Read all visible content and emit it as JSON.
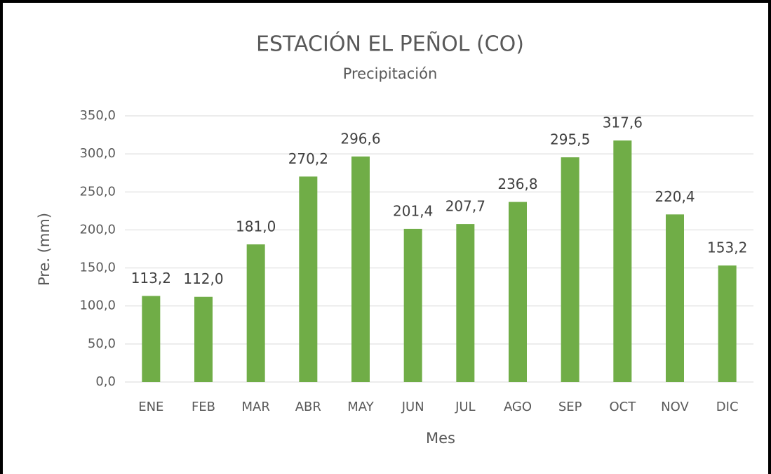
{
  "chart_data": {
    "type": "bar",
    "title": "ESTACIÓN EL PEÑOL (CO)",
    "subtitle": "Precipitación",
    "x_label": "Mes",
    "y_label": "Pre. (mm)",
    "categories": [
      "ENE",
      "FEB",
      "MAR",
      "ABR",
      "MAY",
      "JUN",
      "JUL",
      "AGO",
      "SEP",
      "OCT",
      "NOV",
      "DIC"
    ],
    "values": [
      113.2,
      112.0,
      181.0,
      270.2,
      296.6,
      201.4,
      207.7,
      236.8,
      295.5,
      317.6,
      220.4,
      153.2
    ],
    "value_labels": [
      "113,2",
      "112,0",
      "181,0",
      "270,2",
      "296,6",
      "201,4",
      "207,7",
      "236,8",
      "295,5",
      "317,6",
      "220,4",
      "153,2"
    ],
    "color": "#70ad47",
    "ylim": [
      0,
      350
    ],
    "yticks": [
      {
        "value": 0,
        "label": "0,0"
      },
      {
        "value": 50,
        "label": "50,0"
      },
      {
        "value": 100,
        "label": "100,0"
      },
      {
        "value": 150,
        "label": "150,0"
      },
      {
        "value": 200,
        "label": "200,0"
      },
      {
        "value": 250,
        "label": "250,0"
      },
      {
        "value": 300,
        "label": "300,0"
      },
      {
        "value": 350,
        "label": "350,0"
      }
    ],
    "grid": true
  }
}
